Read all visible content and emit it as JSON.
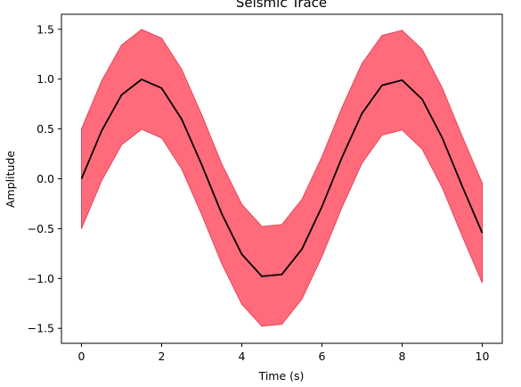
{
  "chart_data": {
    "type": "area",
    "title": "Seismic Trace",
    "xlabel": "Time (s)",
    "ylabel": "Amplitude",
    "xlim": [
      -0.5,
      10.5
    ],
    "ylim": [
      -1.65,
      1.65
    ],
    "x_ticks": [
      0,
      2,
      4,
      6,
      8,
      10
    ],
    "x_tick_labels": [
      "0",
      "2",
      "4",
      "6",
      "8",
      "10"
    ],
    "y_ticks": [
      -1.5,
      -1.0,
      -0.5,
      0.0,
      0.5,
      1.0,
      1.5
    ],
    "y_tick_labels": [
      "−1.5",
      "−1.0",
      "−0.5",
      "0.0",
      "0.5",
      "1.0",
      "1.5"
    ],
    "grid": false,
    "legend": "none",
    "x": [
      0,
      0.5,
      1,
      1.5,
      2,
      2.5,
      3,
      3.5,
      4,
      4.5,
      5,
      5.5,
      6,
      6.5,
      7,
      7.5,
      8,
      8.5,
      9,
      9.5,
      10
    ],
    "series": [
      {
        "role": "center-line",
        "color": "#000000",
        "values": [
          0.0,
          0.479,
          0.841,
          0.997,
          0.909,
          0.598,
          0.141,
          -0.351,
          -0.757,
          -0.978,
          -0.959,
          -0.706,
          -0.279,
          0.215,
          0.657,
          0.938,
          0.989,
          0.798,
          0.412,
          -0.075,
          -0.544
        ]
      },
      {
        "role": "band-upper",
        "color": "#ff6b7a",
        "values": [
          0.5,
          0.979,
          1.341,
          1.497,
          1.409,
          1.098,
          0.641,
          0.149,
          -0.257,
          -0.478,
          -0.459,
          -0.206,
          0.221,
          0.715,
          1.157,
          1.438,
          1.489,
          1.298,
          0.912,
          0.425,
          -0.044
        ]
      },
      {
        "role": "band-lower",
        "color": "#ff6b7a",
        "values": [
          -0.5,
          -0.021,
          0.341,
          0.497,
          0.409,
          0.098,
          -0.359,
          -0.851,
          -1.257,
          -1.478,
          -1.459,
          -1.206,
          -0.779,
          -0.285,
          0.157,
          0.438,
          0.489,
          0.298,
          -0.088,
          -0.575,
          -1.044
        ]
      }
    ],
    "colors": {
      "band_fill": "#ff6b7a",
      "band_edge": "#e8435a",
      "line": "#000000",
      "axes": "#000000"
    }
  }
}
